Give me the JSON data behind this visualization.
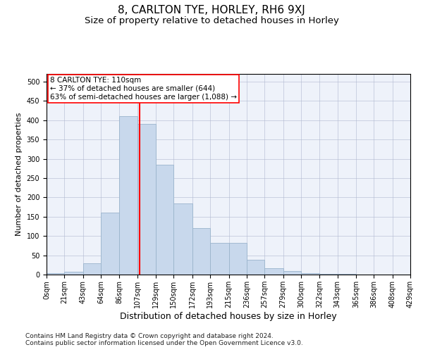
{
  "title": "8, CARLTON TYE, HORLEY, RH6 9XJ",
  "subtitle": "Size of property relative to detached houses in Horley",
  "xlabel": "Distribution of detached houses by size in Horley",
  "ylabel": "Number of detached properties",
  "bar_color": "#c8d8ec",
  "bar_edgecolor": "#9ab4cc",
  "grid_color": "#b0b8d0",
  "background_color": "#eef2fa",
  "vline_x": 110,
  "vline_color": "red",
  "annotation_line1": "8 CARLTON TYE: 110sqm",
  "annotation_line2": "← 37% of detached houses are smaller (644)",
  "annotation_line3": "63% of semi-detached houses are larger (1,088) →",
  "annotation_box_edgecolor": "red",
  "bin_edges": [
    0,
    21,
    43,
    64,
    86,
    107,
    129,
    150,
    172,
    193,
    215,
    236,
    257,
    279,
    300,
    322,
    343,
    365,
    386,
    408,
    429
  ],
  "bar_heights": [
    3,
    8,
    30,
    160,
    410,
    390,
    285,
    185,
    120,
    83,
    83,
    38,
    17,
    10,
    4,
    2,
    1,
    0,
    0,
    0
  ],
  "tick_labels": [
    "0sqm",
    "21sqm",
    "43sqm",
    "64sqm",
    "86sqm",
    "107sqm",
    "129sqm",
    "150sqm",
    "172sqm",
    "193sqm",
    "215sqm",
    "236sqm",
    "257sqm",
    "279sqm",
    "300sqm",
    "322sqm",
    "343sqm",
    "365sqm",
    "386sqm",
    "408sqm",
    "429sqm"
  ],
  "ylim": [
    0,
    520
  ],
  "yticks": [
    0,
    50,
    100,
    150,
    200,
    250,
    300,
    350,
    400,
    450,
    500
  ],
  "footer_line1": "Contains HM Land Registry data © Crown copyright and database right 2024.",
  "footer_line2": "Contains public sector information licensed under the Open Government Licence v3.0.",
  "title_fontsize": 11,
  "subtitle_fontsize": 9.5,
  "xlabel_fontsize": 9,
  "ylabel_fontsize": 8,
  "tick_fontsize": 7,
  "footer_fontsize": 6.5,
  "annot_fontsize": 7.5
}
